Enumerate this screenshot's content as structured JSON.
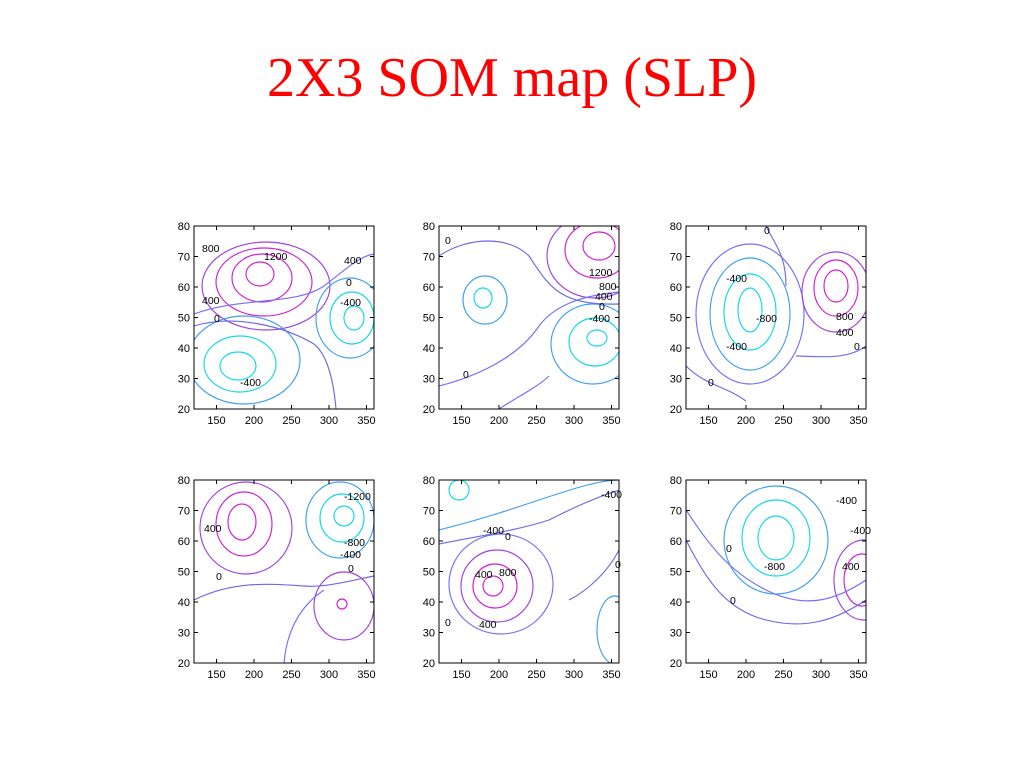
{
  "slide": {
    "title": "2X3 SOM map (SLP)"
  },
  "colors": {
    "title": "#ff0000",
    "positive_high": "#d21ed2",
    "positive_mid": "#a040e0",
    "low_levels": "#7070ff",
    "zero": "#6a6ae8",
    "negative_mid": "#40a0f0",
    "negative_low": "#10d8e8"
  },
  "chart_data": [
    {
      "type": "contour",
      "panel": "1",
      "xlim": [
        120,
        360
      ],
      "ylim": [
        20,
        80
      ],
      "xticks": [
        "150",
        "200",
        "250",
        "300",
        "350"
      ],
      "yticks": [
        "20",
        "30",
        "40",
        "50",
        "60",
        "70",
        "80"
      ],
      "contour_labels": [
        "800",
        "1200",
        "400",
        "0",
        "-400",
        "400",
        "0",
        "-400"
      ]
    },
    {
      "type": "contour",
      "panel": "2",
      "xlim": [
        120,
        360
      ],
      "ylim": [
        20,
        80
      ],
      "xticks": [
        "150",
        "200",
        "250",
        "300",
        "350"
      ],
      "yticks": [
        "20",
        "30",
        "40",
        "50",
        "60",
        "70",
        "80"
      ],
      "contour_labels": [
        "0",
        "1200",
        "800",
        "400",
        "0",
        "-400",
        "0"
      ]
    },
    {
      "type": "contour",
      "panel": "3",
      "xlim": [
        120,
        360
      ],
      "ylim": [
        20,
        80
      ],
      "xticks": [
        "150",
        "200",
        "250",
        "300",
        "350"
      ],
      "yticks": [
        "20",
        "30",
        "40",
        "50",
        "60",
        "70",
        "80"
      ],
      "contour_labels": [
        "0",
        "-400",
        "-800",
        "-400",
        "800",
        "400",
        "0",
        "0"
      ]
    },
    {
      "type": "contour",
      "panel": "4",
      "xlim": [
        120,
        360
      ],
      "ylim": [
        20,
        80
      ],
      "xticks": [
        "150",
        "200",
        "250",
        "300",
        "350"
      ],
      "yticks": [
        "20",
        "30",
        "40",
        "50",
        "60",
        "70",
        "80"
      ],
      "contour_labels": [
        "-1200",
        "400",
        "-800",
        "-400",
        "0",
        "0"
      ]
    },
    {
      "type": "contour",
      "panel": "5",
      "xlim": [
        120,
        360
      ],
      "ylim": [
        20,
        80
      ],
      "xticks": [
        "150",
        "200",
        "250",
        "300",
        "350"
      ],
      "yticks": [
        "20",
        "30",
        "40",
        "50",
        "60",
        "70",
        "80"
      ],
      "contour_labels": [
        "-400",
        "-400",
        "0",
        "400",
        "800",
        "400",
        "0",
        "0"
      ]
    },
    {
      "type": "contour",
      "panel": "6",
      "xlim": [
        120,
        360
      ],
      "ylim": [
        20,
        80
      ],
      "xticks": [
        "150",
        "200",
        "250",
        "300",
        "350"
      ],
      "yticks": [
        "20",
        "30",
        "40",
        "50",
        "60",
        "70",
        "80"
      ],
      "contour_labels": [
        "-400",
        "0",
        "-400",
        "-800",
        "400",
        "0"
      ]
    }
  ]
}
